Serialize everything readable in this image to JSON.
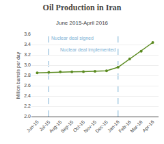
{
  "chart_data": {
    "type": "line",
    "title": "Oil Production in Iran",
    "subtitle": "June 2015-April 2016",
    "ylabel": "Million barrels per day",
    "categories": [
      "Jun-15",
      "Jul-15",
      "Aug-15",
      "Sep-15",
      "Oct-15",
      "Nov-15",
      "Dec-15",
      "Jan-16",
      "Feb-16",
      "Mar-16",
      "Apr-16"
    ],
    "values": [
      2.85,
      2.86,
      2.87,
      2.87,
      2.875,
      2.88,
      2.89,
      2.96,
      3.12,
      3.27,
      3.44
    ],
    "color": "#5a8a1f",
    "marker": "circle",
    "ylim": [
      2.0,
      3.6
    ],
    "yticks": [
      {
        "value": 2.0,
        "label": "2.0"
      },
      2.2,
      2.4,
      2.6,
      2.8,
      {
        "value": 3.0,
        "label": "3.0"
      },
      3.2,
      3.4,
      3.6
    ],
    "grid": true,
    "annotations": [
      {
        "x": "Jul-15",
        "text": "Nuclear deal signed",
        "color": "#7ab0d4",
        "line_style": "dashed"
      },
      {
        "x": "Jan-16",
        "text": "Nuclear deal implemented",
        "color": "#7ab0d4",
        "line_style": "dashed"
      }
    ]
  }
}
